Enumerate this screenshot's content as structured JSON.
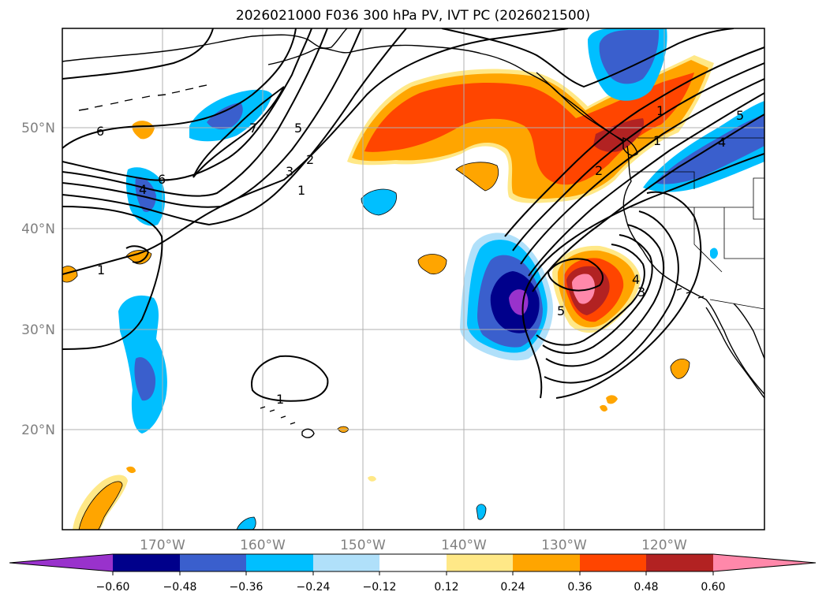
{
  "title": "2026021000 F036 300 hPa PV, IVT PC (2026021500)",
  "colors": {
    "background": "#ffffff",
    "grid": "#b0b0b0",
    "axis_label": "#808080",
    "coast": "#000000",
    "contour": "#000000"
  },
  "map": {
    "lat_labels": [
      "50°N",
      "40°N",
      "30°N",
      "20°N"
    ],
    "lon_labels": [
      "170°W",
      "160°W",
      "150°W",
      "140°W",
      "130°W",
      "120°W"
    ]
  },
  "colorbar": {
    "levels": [
      "−0.60",
      "−0.48",
      "−0.36",
      "−0.24",
      "−0.12",
      "0.12",
      "0.24",
      "0.36",
      "0.48",
      "0.60"
    ],
    "colors": [
      "#9932cc",
      "#00008b",
      "#3a5fcd",
      "#00bfff",
      "#b0e0fa",
      "#ffffff",
      "#ffe887",
      "#ffa500",
      "#ff4500",
      "#b22222",
      "#ff88aa"
    ]
  },
  "contour_labels": [
    "6",
    "7",
    "5",
    "3",
    "2",
    "1",
    "4",
    "6",
    "1",
    "1",
    "2",
    "1",
    "5",
    "4",
    "5",
    "4",
    "3",
    "1"
  ]
}
